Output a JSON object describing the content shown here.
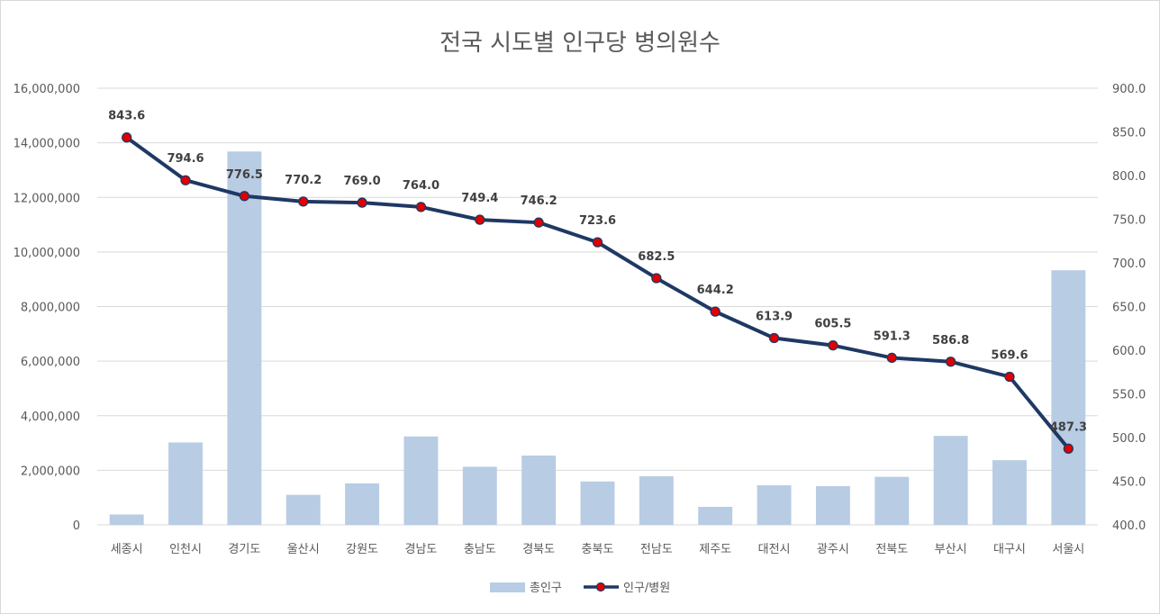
{
  "chart_data": {
    "type": "bar+line",
    "title": "전국 시도별 인구당 병의원수",
    "categories": [
      "세종시",
      "인천시",
      "경기도",
      "울산시",
      "강원도",
      "경남도",
      "충남도",
      "경북도",
      "충북도",
      "전남도",
      "제주도",
      "대전시",
      "광주시",
      "전북도",
      "부산시",
      "대구시",
      "서울시"
    ],
    "series": [
      {
        "name": "총인구",
        "kind": "bar",
        "axis": "left",
        "color": "#b8cce4",
        "values": [
          380000,
          3020000,
          13680000,
          1100000,
          1520000,
          3240000,
          2130000,
          2540000,
          1590000,
          1780000,
          660000,
          1450000,
          1420000,
          1760000,
          3260000,
          2370000,
          9330000
        ]
      },
      {
        "name": "인구/병원",
        "kind": "line",
        "axis": "right",
        "color": "#1f3864",
        "marker_color": "#e00000",
        "values": [
          843.6,
          794.6,
          776.5,
          770.2,
          769.0,
          764.0,
          749.4,
          746.2,
          723.6,
          682.5,
          644.2,
          613.9,
          605.5,
          591.3,
          586.8,
          569.6,
          487.3
        ],
        "labels": [
          "843.6",
          "794.6",
          "776.5",
          "770.2",
          "769.0",
          "764.0",
          "749.4",
          "746.2",
          "723.6",
          "682.5",
          "644.2",
          "613.9",
          "605.5",
          "591.3",
          "586.8",
          "569.6",
          "487.3"
        ]
      }
    ],
    "y_left": {
      "range": [
        0,
        16000000
      ],
      "ticks": [
        "0",
        "2,000,000",
        "4,000,000",
        "6,000,000",
        "8,000,000",
        "10,000,000",
        "12,000,000",
        "14,000,000",
        "16,000,000"
      ]
    },
    "y_right": {
      "range": [
        400,
        900
      ],
      "ticks": [
        "400.0",
        "450.0",
        "500.0",
        "550.0",
        "600.0",
        "650.0",
        "700.0",
        "750.0",
        "800.0",
        "850.0",
        "900.0"
      ]
    },
    "grid": true,
    "legend_position": "bottom"
  }
}
